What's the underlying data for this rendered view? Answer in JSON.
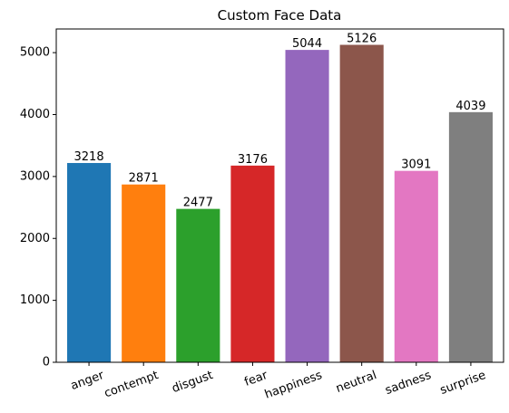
{
  "chart_data": {
    "type": "bar",
    "title": "Custom Face Data",
    "xlabel": "",
    "ylabel": "",
    "categories": [
      "anger",
      "contempt",
      "disgust",
      "fear",
      "happiness",
      "neutral",
      "sadness",
      "surprise"
    ],
    "values": [
      3218,
      2871,
      2477,
      3176,
      5044,
      5126,
      3091,
      4039
    ],
    "colors": [
      "#1f77b4",
      "#ff7f0e",
      "#2ca02c",
      "#d62728",
      "#9467bd",
      "#8c564b",
      "#e377c2",
      "#7f7f7f"
    ],
    "ylim": [
      0,
      5382
    ],
    "yticks": [
      0,
      1000,
      2000,
      3000,
      4000,
      5000
    ],
    "ytick_labels": [
      "0",
      "1000",
      "2000",
      "3000",
      "4000",
      "5000"
    ],
    "xtick_rotation_deg": 20,
    "grid": false,
    "legend": "none"
  }
}
